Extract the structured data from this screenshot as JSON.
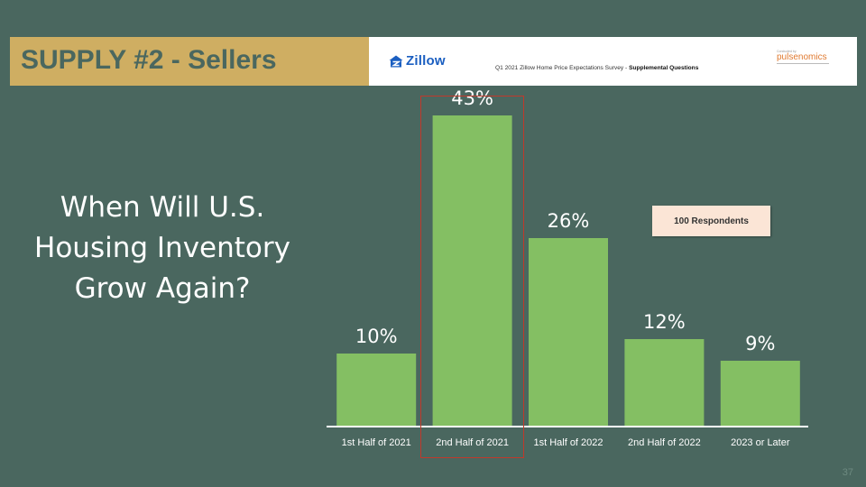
{
  "header": {
    "section_title": "SUPPLY #2 - Sellers",
    "brand_name": "Zillow",
    "survey_text": "Q1 2021 Zillow Home Price Expectations Survey - ",
    "survey_bold": "Supplemental Questions",
    "partner_tagline": "Conducted by",
    "partner_name": "pulsenomics"
  },
  "question": "When Will U.S. Housing Inventory Grow Again?",
  "respondents_label": "100 Respondents",
  "page_number": "37",
  "colors": {
    "background": "#4a675f",
    "header_gold": "#cfae62",
    "bar": "#84bf63",
    "highlight": "#c0392b",
    "zillow_blue": "#1b5fc1"
  },
  "chart_data": {
    "type": "bar",
    "title": "",
    "xlabel": "",
    "ylabel": "",
    "categories": [
      "1st Half of 2021",
      "2nd Half of 2021",
      "1st Half of 2022",
      "2nd Half of 2022",
      "2023 or Later"
    ],
    "values": [
      10,
      43,
      26,
      12,
      9
    ],
    "data_labels": [
      "10%",
      "43%",
      "26%",
      "12%",
      "9%"
    ],
    "ylim": [
      0,
      50
    ],
    "grid": false,
    "legend": "none",
    "highlighted_category": "2nd Half of 2021"
  }
}
